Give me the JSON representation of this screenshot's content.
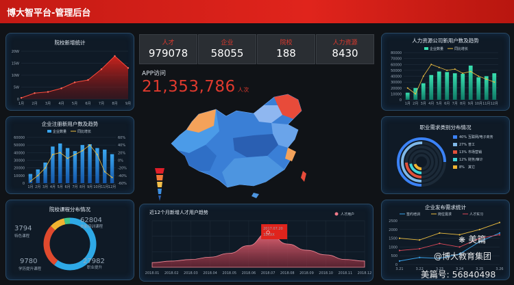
{
  "header": {
    "title": "博大智平台-管理后台"
  },
  "stats": [
    {
      "label": "人才",
      "value": "979078"
    },
    {
      "label": "企业",
      "value": "58055"
    },
    {
      "label": "院校",
      "value": "188"
    },
    {
      "label": "人力资源",
      "value": "8430"
    }
  ],
  "app_visits": {
    "label": "APP访问",
    "value": "21,353,786",
    "unit": "人次"
  },
  "watermark": {
    "brand": "美篇",
    "account": "@博大教育集团",
    "id": "美篇号: 56840498"
  },
  "colors": {
    "accent_red": "#e0241c",
    "panel_border": "#2a4a66",
    "bar_blue": "#1e8fe0",
    "bar_green": "#2fd3a0"
  },
  "chart_data": [
    {
      "id": "school-new",
      "type": "area",
      "title": "院校新增统计",
      "categories": [
        "1月",
        "2月",
        "3月",
        "4月",
        "5月",
        "6月",
        "7月",
        "8月",
        "9月"
      ],
      "values": [
        0.5,
        2.5,
        3,
        4.5,
        7,
        8,
        12.5,
        18,
        13
      ],
      "ylim": [
        0,
        20
      ],
      "yticks": [
        "0",
        "5W",
        "10W",
        "15W",
        "20W"
      ]
    },
    {
      "id": "enterprise-users",
      "type": "bar",
      "title": "企业注册新用户数及趋势",
      "legend": [
        "企业数量",
        "同比增长"
      ],
      "categories": [
        "1月",
        "2月",
        "3月",
        "4月",
        "5月",
        "6月",
        "7月",
        "8月",
        "9月",
        "10月",
        "11月",
        "12月"
      ],
      "series": [
        {
          "name": "企业数量",
          "values": [
            12000,
            18000,
            27000,
            48000,
            52000,
            46000,
            42000,
            50000,
            51000,
            46000,
            44000,
            38000
          ]
        },
        {
          "name": "同比增长",
          "values": [
            -55,
            -40,
            -20,
            15,
            20,
            5,
            15,
            25,
            40,
            15,
            -30,
            -45
          ]
        }
      ],
      "ylim": [
        0,
        60000
      ],
      "yticks": [
        "0",
        "10000",
        "20000",
        "30000",
        "40000",
        "50000",
        "60000"
      ],
      "y2ticks": [
        "-60%",
        "-40%",
        "-20%",
        "0%",
        "20%",
        "40%",
        "60%"
      ]
    },
    {
      "id": "course-dist",
      "type": "pie",
      "title": "院校课程分布情况",
      "slices": [
        {
          "label": "技能培训课程",
          "value": 62804,
          "color": "#2ea9e6"
        },
        {
          "label": "职业提升",
          "value": 27982,
          "color": "#e04a2e"
        },
        {
          "label": "学历提升课程",
          "value": 9780,
          "color": "#f0b431"
        },
        {
          "label": "特色课程",
          "value": 3794,
          "color": "#3fc48a"
        }
      ]
    },
    {
      "id": "talent-trend",
      "type": "area",
      "title": "近12个月新增人才用户趋势",
      "legend": [
        "人才用户"
      ],
      "categories": [
        "2018.01",
        "2018.02",
        "2018.03",
        "2018.04",
        "2018.05",
        "2018.06",
        "2018.07",
        "2018.08",
        "2018.09",
        "2018.10",
        "2018.11",
        "2018.12"
      ],
      "values": [
        6,
        8,
        10,
        13,
        18,
        28,
        45,
        30,
        22,
        16,
        10,
        8
      ],
      "ylim": [
        0,
        60
      ],
      "tooltip": {
        "date": "2017.07.20",
        "value": "33XXX"
      }
    },
    {
      "id": "hr-users",
      "type": "bar",
      "title": "人力资源公司新用户数及趋势",
      "legend": [
        "企业数量",
        "同比增长"
      ],
      "categories": [
        "1月",
        "2月",
        "3月",
        "4月",
        "5月",
        "6月",
        "7月",
        "8月",
        "9月",
        "10月",
        "11月",
        "12月"
      ],
      "series": [
        {
          "name": "企业数量",
          "values": [
            12000,
            20000,
            28000,
            42000,
            48000,
            47000,
            45000,
            44000,
            58000,
            38000,
            40000,
            45000
          ]
        },
        {
          "name": "同比增长",
          "values": [
            20,
            10,
            40,
            60,
            55,
            50,
            52,
            45,
            48,
            40,
            35,
            30
          ]
        }
      ],
      "ylim": [
        0,
        80000
      ],
      "yticks": [
        "0",
        "10000",
        "20000",
        "30000",
        "40000",
        "50000",
        "60000",
        "70000",
        "80000"
      ]
    },
    {
      "id": "job-demand",
      "type": "pie",
      "title": "职业需求类别分布情况",
      "slices": [
        {
          "label": "互联网/电子商务",
          "value": 40,
          "pct": "40%",
          "color": "#3b82f6"
        },
        {
          "label": "普工",
          "value": 27,
          "pct": "27%",
          "color": "#7fb8e8"
        },
        {
          "label": "市场营销",
          "value": 13,
          "pct": "13%",
          "color": "#e0503a"
        },
        {
          "label": "财务/审计",
          "value": 12,
          "pct": "12%",
          "color": "#3fd3d8"
        },
        {
          "label": "其它",
          "value": 8,
          "pct": "8%",
          "color": "#f0b431"
        }
      ]
    },
    {
      "id": "enterprise-demand",
      "type": "line",
      "title": "企业发布需求统计",
      "legend": [
        "签约培训",
        "岗位需求",
        "人才实习"
      ],
      "categories": [
        "3.21",
        "3.22",
        "3.23",
        "3.24",
        "3.25",
        "3.26"
      ],
      "series": [
        {
          "name": "签约培训",
          "values": [
            200,
            400,
            350,
            600,
            1300,
            1800
          ]
        },
        {
          "name": "岗位需求",
          "values": [
            1500,
            1400,
            1800,
            1700,
            2000,
            2400
          ]
        },
        {
          "name": "人才实习",
          "values": [
            800,
            900,
            1200,
            1000,
            1500,
            1700
          ]
        }
      ],
      "ylim": [
        0,
        2500
      ],
      "yticks": [
        "0",
        "500",
        "1000",
        "1500",
        "2000",
        "2500"
      ]
    }
  ]
}
